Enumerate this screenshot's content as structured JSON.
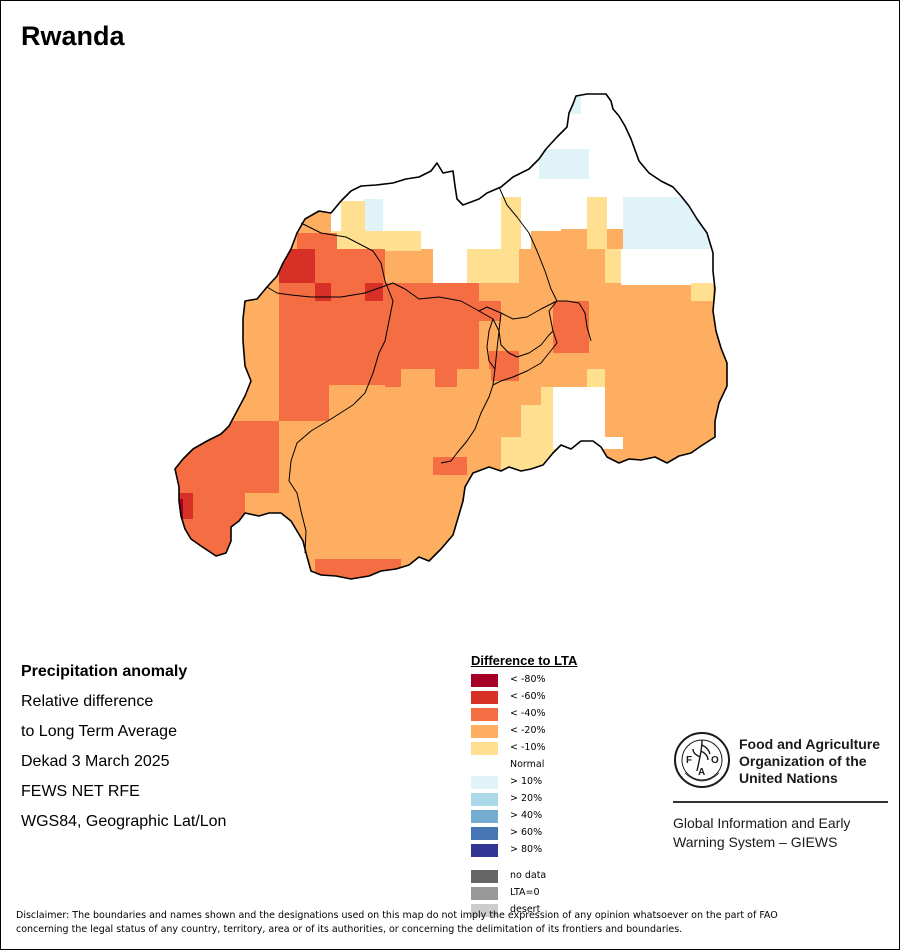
{
  "title": "Rwanda",
  "info": {
    "line1": "Precipitation anomaly",
    "line2": "Relative difference",
    "line3": "to Long Term Average",
    "line4": "Dekad 3 March 2025",
    "line5": "FEWS NET RFE",
    "line6": "WGS84, Geographic Lat/Lon"
  },
  "legend": {
    "title": "Difference to LTA",
    "items": [
      {
        "label": "< -80%",
        "color": "#a50026"
      },
      {
        "label": "< -60%",
        "color": "#d73027"
      },
      {
        "label": "< -40%",
        "color": "#f46d43"
      },
      {
        "label": "< -20%",
        "color": "#fdae61"
      },
      {
        "label": "< -10%",
        "color": "#fee090"
      },
      {
        "label": "Normal",
        "color": "#ffffff"
      },
      {
        "label": "> 10%",
        "color": "#e0f3f8"
      },
      {
        "label": "> 20%",
        "color": "#abd9e9"
      },
      {
        "label": "> 40%",
        "color": "#74add1"
      },
      {
        "label": "> 60%",
        "color": "#4575b4"
      },
      {
        "label": "> 80%",
        "color": "#313695"
      }
    ],
    "extra": [
      {
        "label": "no data",
        "color": "#666666"
      },
      {
        "label": "LTA=0",
        "color": "#999999"
      },
      {
        "label": "desert",
        "color": "#cccccc"
      }
    ]
  },
  "fao": {
    "name_line1": "Food and Agriculture",
    "name_line2": "Organization of the",
    "name_line3": "United Nations",
    "giews_line1": "Global Information and Early",
    "giews_line2": "Warning System – GIEWS"
  },
  "disclaimer": {
    "line1": "Disclaimer: The boundaries and names shown and the designations used on this map do not imply the expression of any opinion whatsoever on the part of FAO",
    "line2": "concerning the legal status of any country, territory, area or of its authorities, or concerning the delimitation of its frontiers and boundaries."
  }
}
